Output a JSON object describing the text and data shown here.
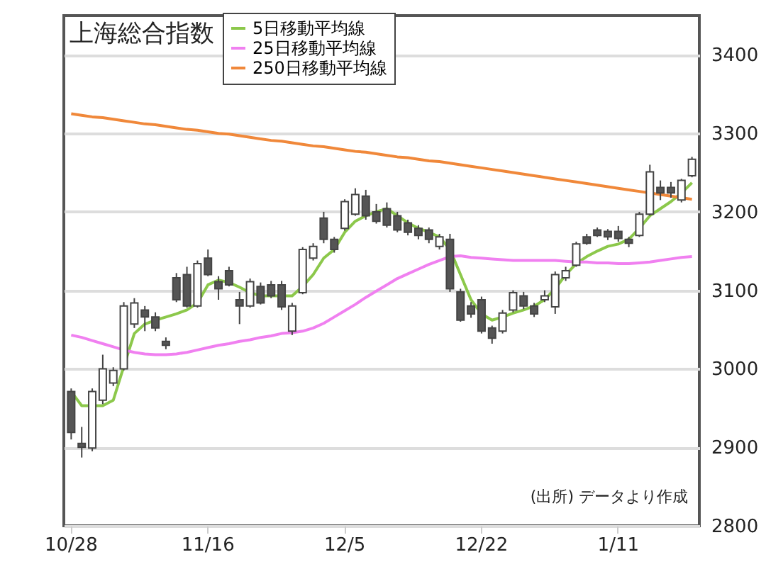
{
  "chart_data": {
    "type": "candlestick",
    "title": "上海総合指数",
    "categories": [
      "10/28",
      null,
      null,
      null,
      null,
      null,
      null,
      null,
      null,
      null,
      null,
      null,
      null,
      "11/16",
      null,
      null,
      null,
      null,
      null,
      null,
      null,
      null,
      null,
      null,
      null,
      null,
      "12/5",
      null,
      null,
      null,
      null,
      null,
      null,
      null,
      null,
      null,
      null,
      null,
      null,
      "12/22",
      null,
      null,
      null,
      null,
      null,
      null,
      null,
      null,
      null,
      null,
      null,
      null,
      "1/11",
      null,
      null,
      null,
      null,
      null,
      null,
      null
    ],
    "ohlc": [
      [
        2971,
        2975,
        2910,
        2919
      ],
      [
        2905,
        2926,
        2887,
        2900
      ],
      [
        2899,
        2975,
        2895,
        2971
      ],
      [
        2960,
        3018,
        2955,
        3000
      ],
      [
        2982,
        3002,
        2978,
        2998
      ],
      [
        3000,
        3085,
        2998,
        3080
      ],
      [
        3057,
        3090,
        3052,
        3084
      ],
      [
        3075,
        3080,
        3048,
        3066
      ],
      [
        3066,
        3072,
        3048,
        3052
      ],
      [
        3035,
        3040,
        3025,
        3030
      ],
      [
        3116,
        3122,
        3085,
        3088
      ],
      [
        3120,
        3130,
        3078,
        3080
      ],
      [
        3080,
        3138,
        3078,
        3134
      ],
      [
        3141,
        3152,
        3118,
        3120
      ],
      [
        3111,
        3118,
        3088,
        3102
      ],
      [
        3125,
        3130,
        3105,
        3107
      ],
      [
        3088,
        3098,
        3057,
        3080
      ],
      [
        3080,
        3115,
        3078,
        3111
      ],
      [
        3105,
        3110,
        3082,
        3084
      ],
      [
        3107,
        3112,
        3090,
        3093
      ],
      [
        3107,
        3112,
        3075,
        3079
      ],
      [
        3048,
        3084,
        3043,
        3080
      ],
      [
        3097,
        3155,
        3095,
        3152
      ],
      [
        3141,
        3160,
        3138,
        3156
      ],
      [
        3192,
        3200,
        3160,
        3165
      ],
      [
        3165,
        3168,
        3148,
        3152
      ],
      [
        3179,
        3216,
        3176,
        3213
      ],
      [
        3197,
        3230,
        3195,
        3222
      ],
      [
        3220,
        3228,
        3190,
        3195
      ],
      [
        3200,
        3210,
        3185,
        3188
      ],
      [
        3204,
        3212,
        3180,
        3183
      ],
      [
        3195,
        3200,
        3174,
        3177
      ],
      [
        3186,
        3190,
        3170,
        3174
      ],
      [
        3179,
        3183,
        3165,
        3170
      ],
      [
        3177,
        3180,
        3160,
        3165
      ],
      [
        3156,
        3172,
        3152,
        3168
      ],
      [
        3165,
        3172,
        3098,
        3102
      ],
      [
        3098,
        3102,
        3060,
        3062
      ],
      [
        3080,
        3085,
        3065,
        3070
      ],
      [
        3088,
        3092,
        3045,
        3048
      ],
      [
        3052,
        3055,
        3032,
        3039
      ],
      [
        3048,
        3075,
        3045,
        3071
      ],
      [
        3075,
        3100,
        3072,
        3097
      ],
      [
        3093,
        3098,
        3076,
        3080
      ],
      [
        3080,
        3084,
        3066,
        3070
      ],
      [
        3088,
        3100,
        3085,
        3093
      ],
      [
        3079,
        3124,
        3070,
        3120
      ],
      [
        3116,
        3130,
        3112,
        3125
      ],
      [
        3132,
        3162,
        3130,
        3159
      ],
      [
        3168,
        3172,
        3158,
        3160
      ],
      [
        3177,
        3180,
        3168,
        3170
      ],
      [
        3175,
        3178,
        3164,
        3168
      ],
      [
        3175,
        3182,
        3162,
        3166
      ],
      [
        3165,
        3168,
        3155,
        3160
      ],
      [
        3170,
        3200,
        3168,
        3197
      ],
      [
        3197,
        3260,
        3195,
        3251
      ],
      [
        3231,
        3240,
        3215,
        3224
      ],
      [
        3231,
        3238,
        3218,
        3224
      ],
      [
        3215,
        3242,
        3212,
        3240
      ],
      [
        3246,
        3270,
        3244,
        3267
      ]
    ],
    "series": [
      {
        "name": "5日移動平均線",
        "type": "line",
        "color": "#8cc84b",
        "values": [
          2971,
          2953,
          2953,
          2953,
          2960,
          3003,
          3045,
          3057,
          3062,
          3066,
          3070,
          3075,
          3084,
          3107,
          3113,
          3110,
          3104,
          3097,
          3093,
          3093,
          3093,
          3093,
          3105,
          3120,
          3141,
          3152,
          3174,
          3188,
          3195,
          3200,
          3204,
          3195,
          3186,
          3179,
          3174,
          3168,
          3152,
          3120,
          3088,
          3070,
          3062,
          3066,
          3071,
          3075,
          3080,
          3088,
          3102,
          3120,
          3134,
          3143,
          3150,
          3156,
          3159,
          3165,
          3179,
          3195,
          3204,
          3213,
          3224,
          3237
        ]
      },
      {
        "name": "25日移動平均線",
        "type": "line",
        "color": "#f080f0",
        "values": [
          3043,
          3040,
          3036,
          3032,
          3028,
          3024,
          3021,
          3019,
          3018,
          3018,
          3019,
          3021,
          3024,
          3027,
          3030,
          3032,
          3035,
          3037,
          3040,
          3042,
          3045,
          3046,
          3048,
          3052,
          3058,
          3066,
          3074,
          3082,
          3091,
          3099,
          3107,
          3115,
          3121,
          3127,
          3133,
          3138,
          3143,
          3144,
          3142,
          3141,
          3140,
          3139,
          3138,
          3138,
          3138,
          3138,
          3138,
          3137,
          3136,
          3136,
          3135,
          3135,
          3134,
          3134,
          3135,
          3136,
          3138,
          3140,
          3142,
          3143
        ]
      },
      {
        "name": "250日移動平均線",
        "type": "line",
        "color": "#f0883a",
        "values": [
          3325,
          3323,
          3321,
          3320,
          3318,
          3316,
          3314,
          3312,
          3311,
          3309,
          3307,
          3305,
          3304,
          3302,
          3300,
          3299,
          3297,
          3295,
          3293,
          3291,
          3290,
          3288,
          3286,
          3284,
          3283,
          3281,
          3279,
          3277,
          3276,
          3274,
          3272,
          3270,
          3269,
          3267,
          3265,
          3264,
          3262,
          3260,
          3258,
          3256,
          3254,
          3252,
          3250,
          3248,
          3246,
          3244,
          3242,
          3240,
          3238,
          3236,
          3234,
          3232,
          3230,
          3228,
          3226,
          3224,
          3222,
          3220,
          3218,
          3216
        ]
      }
    ],
    "ylim": [
      2800,
      3450
    ],
    "yticks": [
      2800,
      2900,
      3000,
      3100,
      3200,
      3300,
      3400
    ],
    "grid": "y",
    "legend": "top left",
    "annotations": [
      "(出所) データより作成"
    ]
  }
}
